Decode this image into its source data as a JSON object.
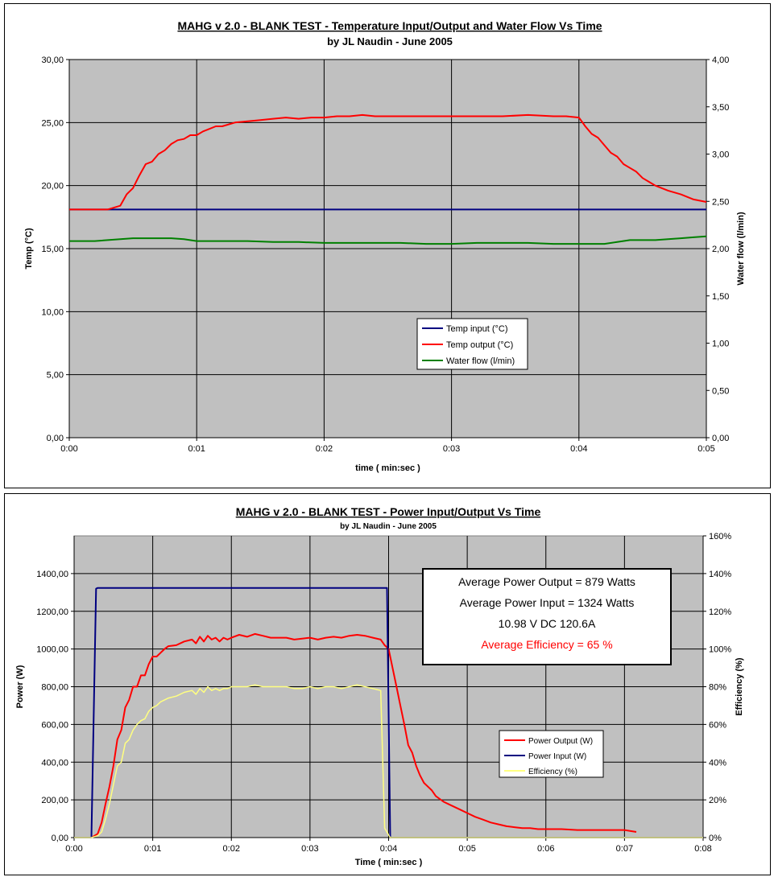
{
  "colors": {
    "plot_bg": "#c0c0c0",
    "grid": "#000000",
    "temp_input": "#000080",
    "temp_output": "#ff0000",
    "water_flow": "#008000",
    "power_output": "#ff0000",
    "power_input": "#000080",
    "efficiency": "#ffff80",
    "annotation_red": "#ff0000"
  },
  "chart_data": [
    {
      "type": "line",
      "title": "MAHG v 2.0 - BLANK TEST - Temperature Input/Output and Water Flow Vs Time",
      "subtitle": "by JL Naudin - June 2005",
      "xlabel": "time  ( min:sec )",
      "ylabel": "Temp (°C)",
      "y2label": "Water flow   (l/min)",
      "xlim": [
        0,
        5
      ],
      "ylim": [
        0,
        30
      ],
      "y2lim": [
        0,
        4
      ],
      "x_ticks": [
        "0:00",
        "0:01",
        "0:02",
        "0:03",
        "0:04",
        "0:05"
      ],
      "y_ticks": [
        "0,00",
        "5,00",
        "10,00",
        "15,00",
        "20,00",
        "25,00",
        "30,00"
      ],
      "y2_ticks": [
        "0,00",
        "0,50",
        "1,00",
        "1,50",
        "2,00",
        "2,50",
        "3,00",
        "3,50",
        "4,00"
      ],
      "grid": true,
      "legend_position": "center",
      "series": [
        {
          "name": "Temp input (°C)",
          "axis": "left",
          "x": [
            0,
            5
          ],
          "y": [
            18.1,
            18.1
          ]
        },
        {
          "name": "Temp output (°C)",
          "axis": "left",
          "x": [
            0,
            0.1,
            0.2,
            0.3,
            0.4,
            0.45,
            0.5,
            0.55,
            0.6,
            0.65,
            0.7,
            0.75,
            0.8,
            0.85,
            0.9,
            0.95,
            1.0,
            1.05,
            1.1,
            1.15,
            1.2,
            1.3,
            1.4,
            1.5,
            1.6,
            1.7,
            1.8,
            1.9,
            2.0,
            2.1,
            2.2,
            2.3,
            2.4,
            2.5,
            2.6,
            2.7,
            2.8,
            2.9,
            3.0,
            3.2,
            3.4,
            3.6,
            3.8,
            3.9,
            4.0,
            4.05,
            4.1,
            4.15,
            4.2,
            4.25,
            4.3,
            4.35,
            4.4,
            4.45,
            4.5,
            4.55,
            4.6,
            4.7,
            4.8,
            4.9,
            5.0
          ],
          "y": [
            18.1,
            18.1,
            18.1,
            18.1,
            18.4,
            19.3,
            19.8,
            20.8,
            21.7,
            21.9,
            22.5,
            22.8,
            23.3,
            23.6,
            23.7,
            24.0,
            24.0,
            24.3,
            24.5,
            24.7,
            24.7,
            25.0,
            25.1,
            25.2,
            25.3,
            25.4,
            25.3,
            25.4,
            25.4,
            25.5,
            25.5,
            25.6,
            25.5,
            25.5,
            25.5,
            25.5,
            25.5,
            25.5,
            25.5,
            25.5,
            25.5,
            25.6,
            25.5,
            25.5,
            25.4,
            24.7,
            24.1,
            23.8,
            23.2,
            22.6,
            22.3,
            21.7,
            21.4,
            21.1,
            20.6,
            20.3,
            20.0,
            19.6,
            19.3,
            18.9,
            18.7
          ]
        },
        {
          "name": "Water flow (l/min)",
          "axis": "right",
          "x": [
            0,
            0.2,
            0.4,
            0.5,
            0.6,
            0.7,
            0.8,
            0.9,
            1.0,
            1.2,
            1.4,
            1.6,
            1.8,
            2.0,
            2.2,
            2.4,
            2.6,
            2.8,
            3.0,
            3.2,
            3.4,
            3.6,
            3.8,
            4.0,
            4.1,
            4.2,
            4.3,
            4.4,
            4.5,
            4.6,
            4.7,
            4.8,
            4.9,
            5.0
          ],
          "y": [
            2.08,
            2.08,
            2.1,
            2.11,
            2.11,
            2.11,
            2.11,
            2.1,
            2.08,
            2.08,
            2.08,
            2.07,
            2.07,
            2.06,
            2.06,
            2.06,
            2.06,
            2.05,
            2.05,
            2.06,
            2.06,
            2.06,
            2.05,
            2.05,
            2.05,
            2.05,
            2.07,
            2.09,
            2.09,
            2.09,
            2.1,
            2.11,
            2.12,
            2.13
          ]
        }
      ]
    },
    {
      "type": "line",
      "title": "MAHG v 2.0 - BLANK TEST - Power Input/Output Vs Time",
      "subtitle": "by JL Naudin - June 2005",
      "xlabel": "Time  ( min:sec )",
      "ylabel": "Power (W)",
      "y2label": "Efficiency (%)",
      "xlim": [
        0,
        8
      ],
      "ylim": [
        0,
        1600
      ],
      "y2lim": [
        0,
        160
      ],
      "x_ticks": [
        "0:00",
        "0:01",
        "0:02",
        "0:03",
        "0:04",
        "0:05",
        "0:06",
        "0:07",
        "0:08"
      ],
      "y_ticks": [
        "0,00",
        "200,00",
        "400,00",
        "600,00",
        "800,00",
        "1000,00",
        "1200,00",
        "1400,00"
      ],
      "y2_ticks": [
        "0%",
        "20%",
        "40%",
        "60%",
        "80%",
        "100%",
        "120%",
        "140%",
        "160%"
      ],
      "grid": true,
      "legend_position": "center-right",
      "annotation": {
        "line1": "Average Power Output = 879 Watts",
        "line2": "Average Power Input = 1324 Watts",
        "line3": "10.98 V DC  120.6A",
        "line4": "Average Efficiency =  65 %"
      },
      "series": [
        {
          "name": "Power Output (W)",
          "axis": "left",
          "x": [
            0.22,
            0.3,
            0.35,
            0.4,
            0.45,
            0.5,
            0.55,
            0.6,
            0.65,
            0.7,
            0.75,
            0.8,
            0.85,
            0.9,
            0.95,
            1.0,
            1.05,
            1.1,
            1.15,
            1.2,
            1.3,
            1.4,
            1.5,
            1.55,
            1.6,
            1.65,
            1.7,
            1.75,
            1.8,
            1.85,
            1.9,
            1.95,
            2.0,
            2.1,
            2.2,
            2.3,
            2.4,
            2.5,
            2.6,
            2.7,
            2.8,
            2.9,
            3.0,
            3.1,
            3.2,
            3.3,
            3.4,
            3.5,
            3.6,
            3.7,
            3.8,
            3.9,
            3.95,
            4.0,
            4.05,
            4.1,
            4.15,
            4.2,
            4.25,
            4.3,
            4.35,
            4.4,
            4.45,
            4.5,
            4.55,
            4.6,
            4.7,
            4.8,
            4.9,
            5.0,
            5.1,
            5.2,
            5.3,
            5.4,
            5.5,
            5.6,
            5.7,
            5.8,
            5.9,
            6.0,
            6.2,
            6.4,
            6.6,
            6.8,
            7.0,
            7.15
          ],
          "y": [
            0,
            20,
            80,
            180,
            270,
            380,
            520,
            570,
            690,
            730,
            800,
            800,
            860,
            860,
            920,
            960,
            960,
            980,
            1000,
            1015,
            1020,
            1040,
            1050,
            1030,
            1065,
            1040,
            1070,
            1050,
            1060,
            1040,
            1060,
            1050,
            1060,
            1075,
            1065,
            1080,
            1070,
            1060,
            1060,
            1060,
            1050,
            1055,
            1060,
            1050,
            1060,
            1065,
            1060,
            1070,
            1075,
            1070,
            1060,
            1050,
            1020,
            1000,
            900,
            800,
            700,
            600,
            490,
            450,
            380,
            330,
            290,
            270,
            250,
            220,
            190,
            170,
            150,
            130,
            110,
            95,
            80,
            70,
            60,
            55,
            50,
            50,
            45,
            45,
            45,
            40,
            40,
            40,
            40,
            30
          ]
        },
        {
          "name": "Power Input (W)",
          "axis": "left",
          "x": [
            0,
            0.22,
            0.28,
            0.3,
            1.0,
            2.0,
            3.0,
            3.98,
            4.02,
            4.1,
            8.0
          ],
          "y": [
            0,
            0,
            1320,
            1324,
            1324,
            1324,
            1324,
            1324,
            0,
            0,
            0
          ]
        },
        {
          "name": "Efficiency (%)",
          "axis": "right",
          "x": [
            0,
            0.22,
            0.3,
            0.35,
            0.4,
            0.45,
            0.5,
            0.55,
            0.6,
            0.65,
            0.7,
            0.75,
            0.8,
            0.85,
            0.9,
            0.95,
            1.0,
            1.05,
            1.1,
            1.15,
            1.2,
            1.3,
            1.4,
            1.5,
            1.55,
            1.6,
            1.65,
            1.7,
            1.75,
            1.8,
            1.85,
            1.9,
            1.95,
            2.0,
            2.1,
            2.2,
            2.3,
            2.4,
            2.5,
            2.6,
            2.7,
            2.8,
            2.9,
            3.0,
            3.1,
            3.2,
            3.3,
            3.4,
            3.5,
            3.6,
            3.7,
            3.8,
            3.9,
            3.95,
            4.02,
            4.05,
            5.0,
            6.0,
            7.0,
            8.0
          ],
          "y": [
            0,
            0,
            1,
            3,
            10,
            18,
            28,
            38,
            40,
            50,
            52,
            57,
            60,
            62,
            63,
            67,
            69,
            70,
            72,
            73,
            74,
            75,
            77,
            78,
            76,
            79,
            77,
            80,
            78,
            79,
            78,
            79,
            79,
            80,
            80,
            80,
            81,
            80,
            80,
            80,
            80,
            79,
            79,
            80,
            79,
            80,
            80,
            79,
            80,
            81,
            80,
            79,
            78,
            5,
            0,
            0,
            0,
            0,
            0,
            0
          ]
        }
      ]
    }
  ]
}
